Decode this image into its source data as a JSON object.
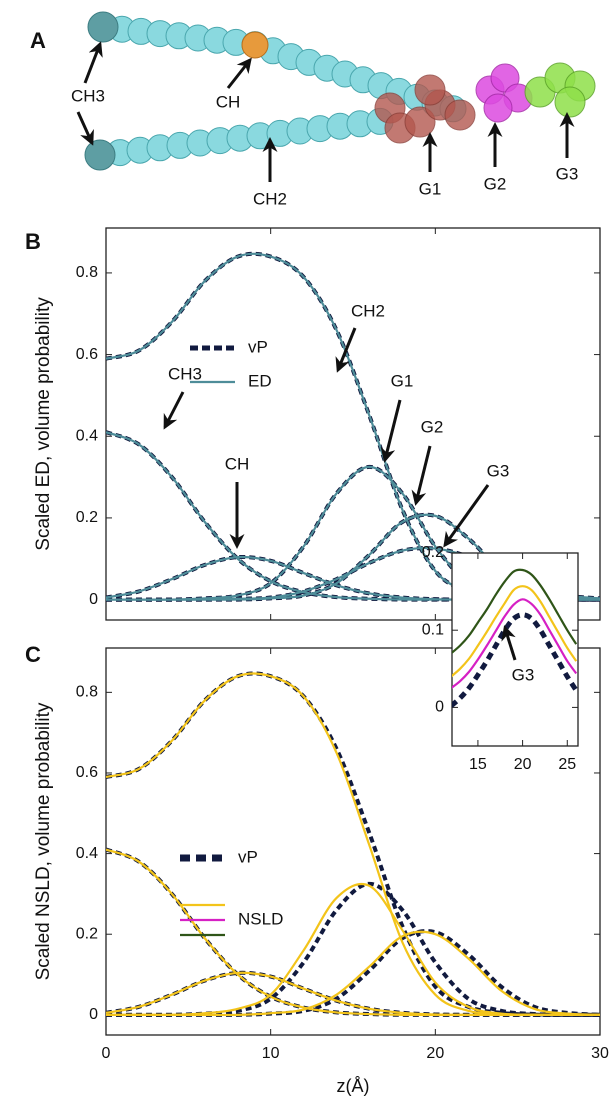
{
  "panel_a": {
    "label": "A",
    "labels": [
      "CH3",
      "CH",
      "CH2",
      "G1",
      "G2",
      "G3"
    ]
  },
  "chart_data": [
    {
      "type": "line",
      "panel": "B",
      "ylabel": "Scaled ED, volume probability",
      "x": [
        0,
        2,
        4,
        6,
        8,
        10,
        12,
        14,
        16,
        18,
        20,
        22,
        24,
        26,
        28,
        30
      ],
      "xlim": [
        0,
        30
      ],
      "ylim": [
        -0.05,
        0.91
      ],
      "xticks": [
        0,
        10,
        20,
        30
      ],
      "yticks": [
        0,
        0.2,
        0.4,
        0.6,
        0.8
      ],
      "annotations": [
        "CH2",
        "CH3",
        "CH",
        "G1",
        "G2",
        "G3"
      ],
      "series": [
        {
          "name": "vP",
          "color": "#111a3f",
          "dashed": true,
          "curves": [
            [
              0.59,
              0.61,
              0.68,
              0.78,
              0.84,
              0.84,
              0.79,
              0.66,
              0.45,
              0.22,
              0.07,
              0.02,
              0.005,
              0,
              0,
              0
            ],
            [
              0.41,
              0.38,
              0.3,
              0.19,
              0.1,
              0.045,
              0.018,
              0.006,
              0.002,
              0,
              0,
              0,
              0,
              0,
              0,
              0
            ],
            [
              0.005,
              0.02,
              0.05,
              0.085,
              0.104,
              0.095,
              0.065,
              0.035,
              0.015,
              0.005,
              0.001,
              0,
              0,
              0,
              0,
              0
            ],
            [
              0,
              0,
              0,
              0.003,
              0.01,
              0.04,
              0.13,
              0.26,
              0.325,
              0.26,
              0.13,
              0.04,
              0.01,
              0.002,
              0,
              0
            ],
            [
              0,
              0,
              0,
              0,
              0,
              0.003,
              0.01,
              0.04,
              0.11,
              0.19,
              0.205,
              0.15,
              0.07,
              0.02,
              0.005,
              0
            ],
            [
              0,
              0,
              0,
              0,
              0.002,
              0.005,
              0.02,
              0.05,
              0.09,
              0.12,
              0.125,
              0.105,
              0.065,
              0.03,
              0.01,
              0.003
            ]
          ]
        },
        {
          "name": "ED",
          "color": "#4e8d99",
          "curves": [
            [
              0.59,
              0.61,
              0.68,
              0.78,
              0.84,
              0.84,
              0.79,
              0.66,
              0.45,
              0.22,
              0.07,
              0.02,
              0.005,
              0,
              0,
              0
            ],
            [
              0.41,
              0.38,
              0.3,
              0.19,
              0.1,
              0.045,
              0.018,
              0.006,
              0.002,
              0,
              0,
              0,
              0,
              0,
              0,
              0
            ],
            [
              0.005,
              0.02,
              0.05,
              0.085,
              0.104,
              0.095,
              0.065,
              0.035,
              0.015,
              0.005,
              0.001,
              0,
              0,
              0,
              0,
              0
            ],
            [
              0,
              0,
              0,
              0.003,
              0.01,
              0.04,
              0.13,
              0.26,
              0.325,
              0.26,
              0.13,
              0.04,
              0.01,
              0.002,
              0,
              0
            ],
            [
              0,
              0,
              0,
              0,
              0,
              0.003,
              0.01,
              0.04,
              0.11,
              0.19,
              0.205,
              0.15,
              0.07,
              0.02,
              0.005,
              0
            ],
            [
              0,
              0,
              0,
              0,
              0.002,
              0.005,
              0.02,
              0.05,
              0.09,
              0.12,
              0.125,
              0.105,
              0.065,
              0.03,
              0.01,
              0.003
            ]
          ]
        }
      ]
    },
    {
      "type": "line",
      "panel": "C",
      "ylabel": "Scaled NSLD, volume probability",
      "xlabel": "z(Å)",
      "x": [
        0,
        2,
        4,
        6,
        8,
        10,
        12,
        14,
        16,
        18,
        20,
        22,
        24,
        26,
        28,
        30
      ],
      "xlim": [
        0,
        30
      ],
      "ylim": [
        -0.05,
        0.91
      ],
      "xticks": [
        0,
        10,
        20,
        30
      ],
      "yticks": [
        0,
        0.2,
        0.4,
        0.6,
        0.8
      ],
      "series": [
        {
          "name": "vP",
          "color": "#111a3f",
          "dashed": true,
          "curves": [
            [
              0.59,
              0.61,
              0.68,
              0.78,
              0.84,
              0.84,
              0.79,
              0.66,
              0.45,
              0.22,
              0.07,
              0.02,
              0.005,
              0,
              0,
              0
            ],
            [
              0.41,
              0.38,
              0.3,
              0.19,
              0.1,
              0.045,
              0.018,
              0.006,
              0.002,
              0,
              0,
              0,
              0,
              0,
              0,
              0
            ],
            [
              0.005,
              0.02,
              0.05,
              0.085,
              0.104,
              0.095,
              0.065,
              0.035,
              0.015,
              0.005,
              0.001,
              0,
              0,
              0,
              0,
              0
            ],
            [
              0,
              0,
              0,
              0.003,
              0.01,
              0.04,
              0.13,
              0.26,
              0.325,
              0.26,
              0.13,
              0.04,
              0.01,
              0.002,
              0,
              0
            ],
            [
              0,
              0,
              0,
              0,
              0,
              0.003,
              0.01,
              0.04,
              0.11,
              0.19,
              0.205,
              0.15,
              0.07,
              0.02,
              0.005,
              0
            ]
          ]
        },
        {
          "name": "NSLD",
          "colors": [
            "#f3c41a",
            "#d620c4",
            "#2f5518"
          ],
          "curves": [
            [
              0.59,
              0.61,
              0.68,
              0.78,
              0.84,
              0.84,
              0.79,
              0.65,
              0.42,
              0.18,
              0.05,
              0.01,
              0.002,
              0,
              0,
              0
            ],
            [
              0.41,
              0.38,
              0.3,
              0.19,
              0.1,
              0.045,
              0.018,
              0.006,
              0.002,
              0,
              0,
              0,
              0,
              0,
              0,
              0
            ],
            [
              0.005,
              0.02,
              0.05,
              0.085,
              0.104,
              0.095,
              0.065,
              0.035,
              0.015,
              0.005,
              0.001,
              0,
              0,
              0,
              0,
              0
            ],
            [
              0,
              0,
              0,
              0.004,
              0.015,
              0.05,
              0.16,
              0.29,
              0.32,
              0.21,
              0.08,
              0.02,
              0.003,
              0,
              0,
              0
            ],
            [
              0,
              0,
              0,
              0,
              0,
              0.004,
              0.013,
              0.05,
              0.12,
              0.195,
              0.2,
              0.14,
              0.06,
              0.015,
              0.003,
              0
            ]
          ]
        }
      ]
    },
    {
      "type": "line",
      "annotation": "G3",
      "x": [
        12,
        13,
        14,
        15,
        16,
        17,
        18,
        19,
        20,
        21,
        22,
        23,
        24,
        25,
        26
      ],
      "xlim": [
        12.1,
        26.2
      ],
      "ylim": [
        -0.05,
        0.2
      ],
      "xticks": [
        15,
        20,
        25
      ],
      "yticks": [
        0,
        0.1,
        0.2
      ],
      "series": [
        {
          "color": "#111a3f",
          "dashed": true,
          "curves": [
            [
              0.002,
              0.012,
              0.025,
              0.042,
              0.06,
              0.08,
              0.1,
              0.115,
              0.12,
              0.115,
              0.1,
              0.08,
              0.06,
              0.04,
              0.022
            ]
          ]
        },
        {
          "color": "#f3c41a",
          "curves": [
            [
              0.04,
              0.05,
              0.063,
              0.08,
              0.098,
              0.117,
              0.135,
              0.152,
              0.157,
              0.152,
              0.137,
              0.117,
              0.097,
              0.077,
              0.06
            ]
          ]
        },
        {
          "color": "#d620c4",
          "curves": [
            [
              0.025,
              0.034,
              0.046,
              0.062,
              0.08,
              0.099,
              0.118,
              0.133,
              0.14,
              0.134,
              0.12,
              0.1,
              0.08,
              0.06,
              0.044
            ]
          ]
        },
        {
          "color": "#2f5518",
          "curves": [
            [
              0.07,
              0.08,
              0.093,
              0.11,
              0.127,
              0.146,
              0.163,
              0.176,
              0.178,
              0.172,
              0.158,
              0.14,
              0.12,
              0.1,
              0.082
            ]
          ]
        }
      ]
    }
  ]
}
